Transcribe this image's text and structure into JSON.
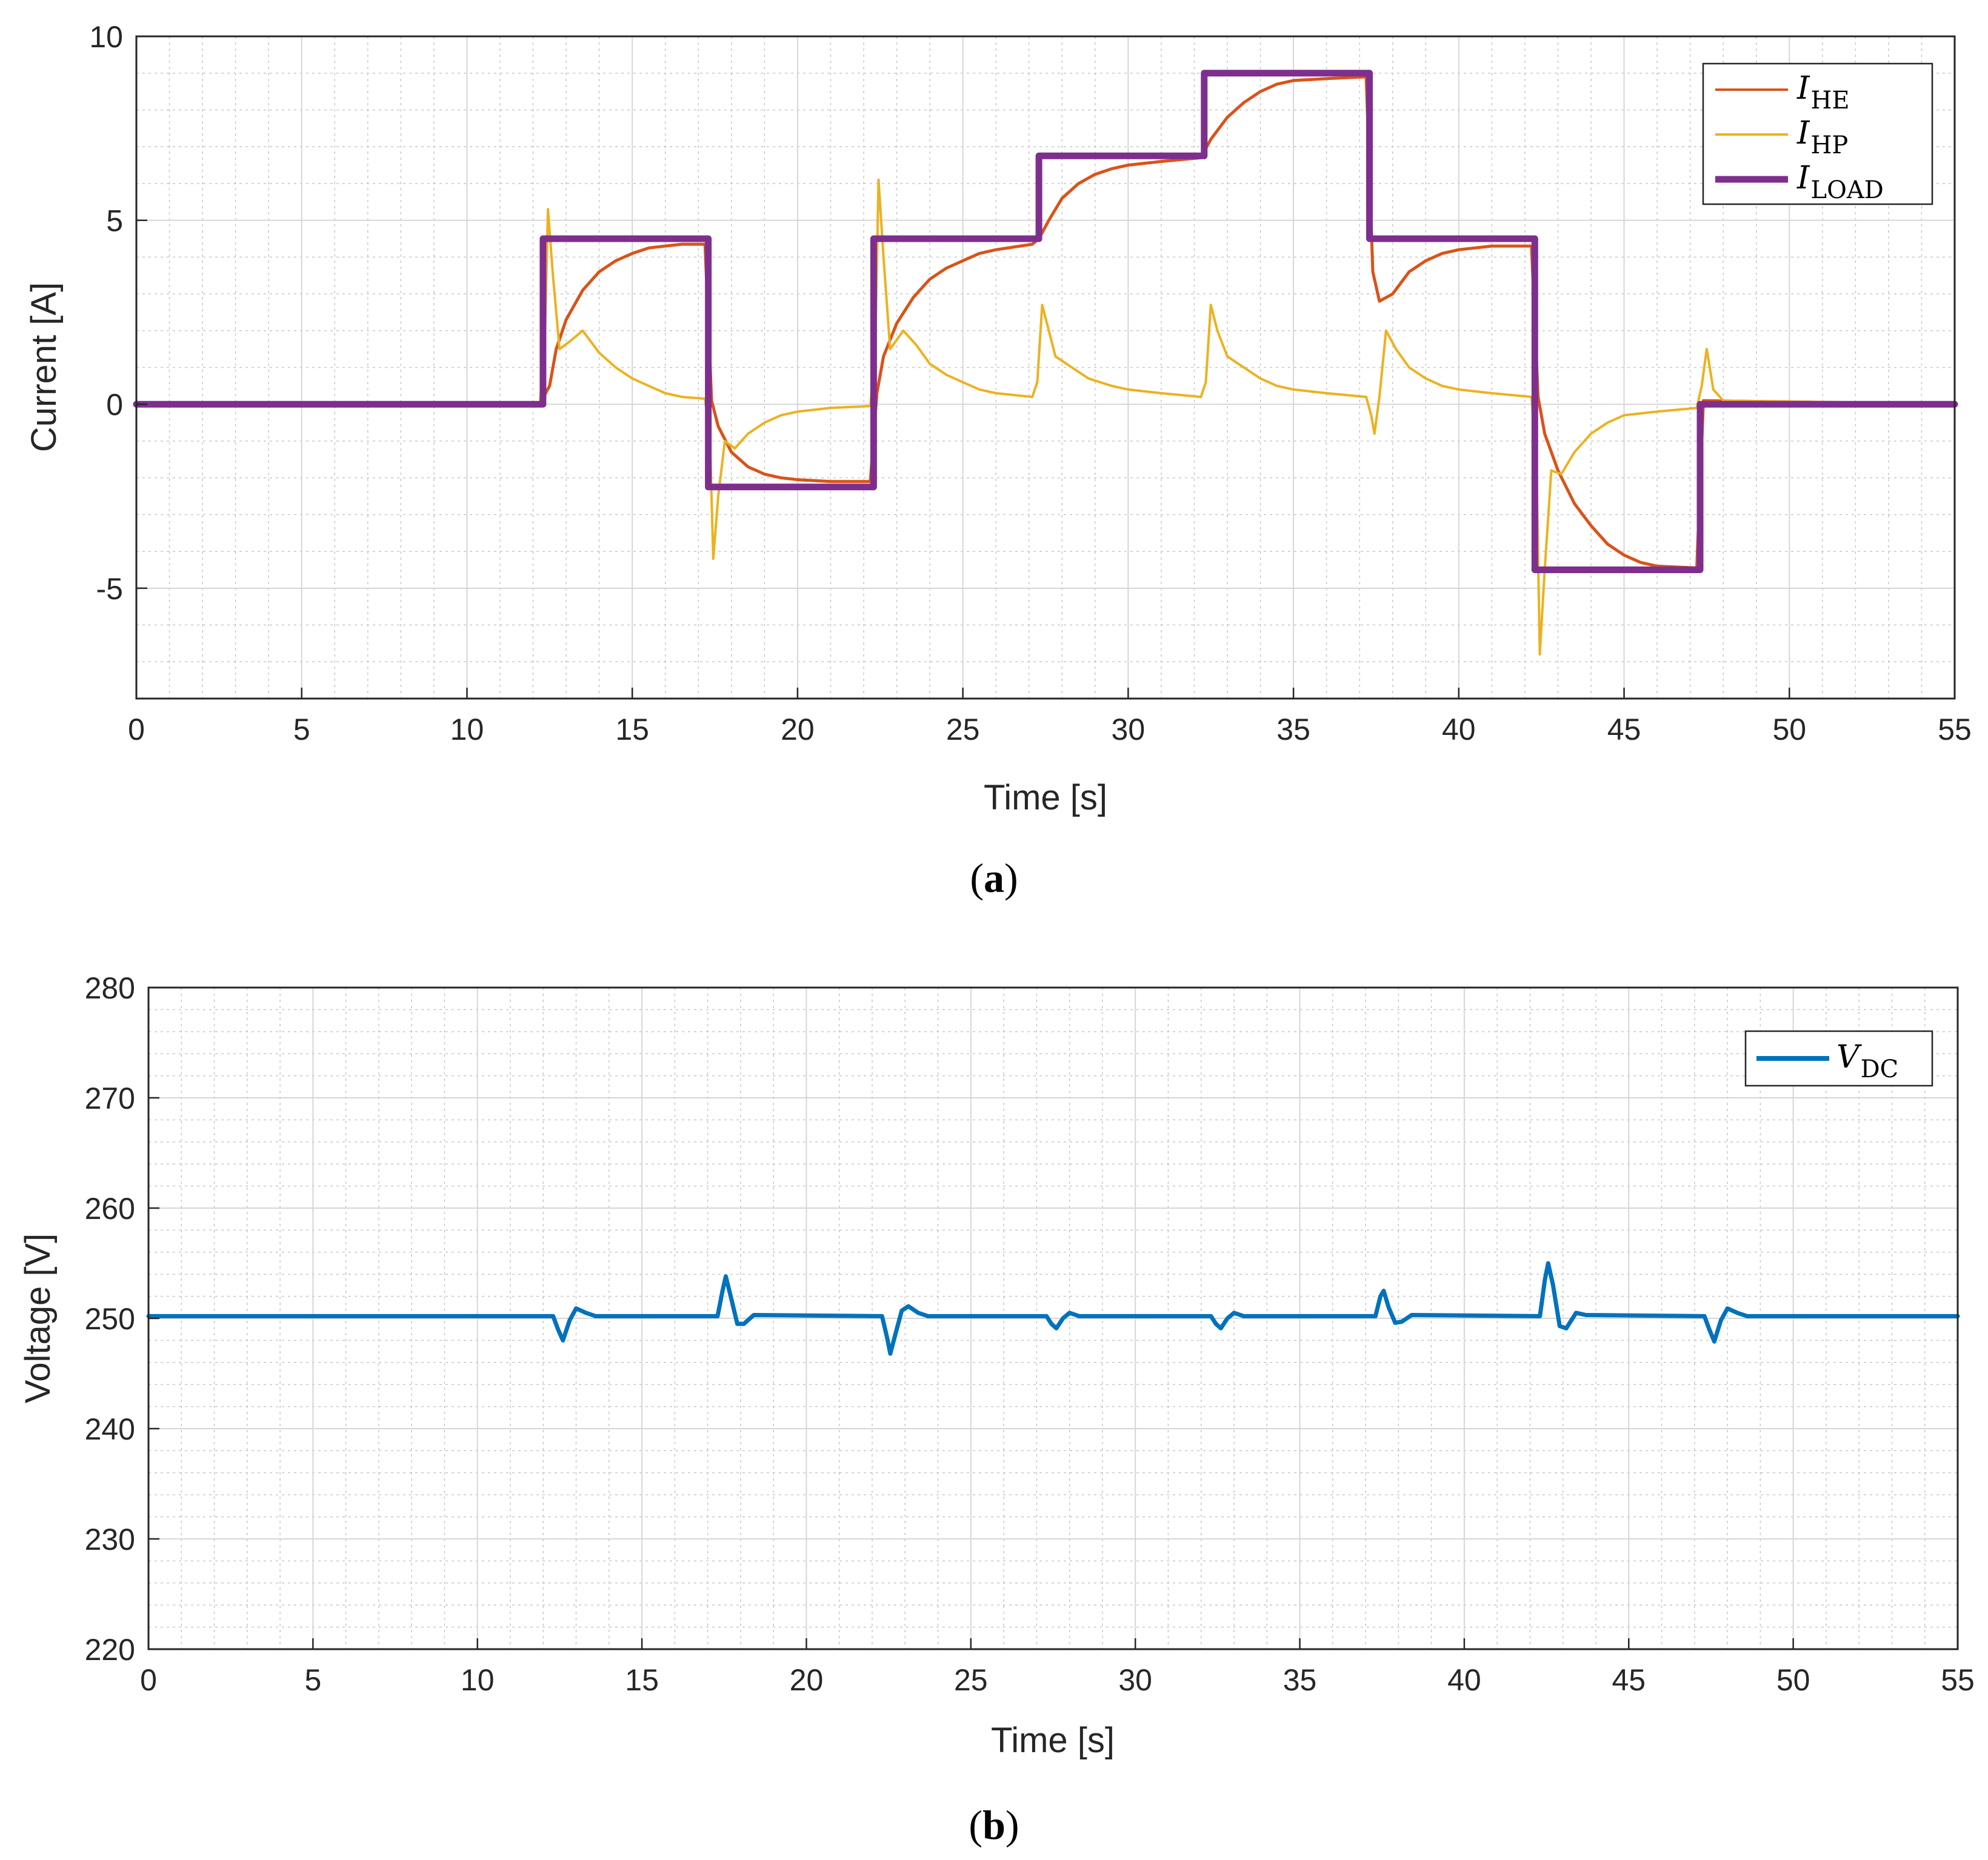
{
  "chart_data": [
    {
      "id": "a",
      "type": "line",
      "caption": "a",
      "xlabel": "Time [s]",
      "ylabel": "Current [A]",
      "xlim": [
        0,
        55
      ],
      "ylim": [
        -8,
        10
      ],
      "xticks": [
        0,
        5,
        10,
        15,
        20,
        25,
        30,
        35,
        40,
        45,
        50,
        55
      ],
      "yticks": [
        -5,
        0,
        5,
        10
      ],
      "grid": true,
      "minor_grid": true,
      "legend_position": "top-right",
      "series": [
        {
          "name": "I_HE",
          "label_main": "I",
          "label_sub": "HE",
          "color": "#D95319",
          "points": [
            [
              0,
              0
            ],
            [
              12.2,
              0
            ],
            [
              12.5,
              0.5
            ],
            [
              12.7,
              1.5
            ],
            [
              13.0,
              2.3
            ],
            [
              13.5,
              3.1
            ],
            [
              14,
              3.6
            ],
            [
              14.5,
              3.9
            ],
            [
              15,
              4.1
            ],
            [
              15.5,
              4.25
            ],
            [
              16,
              4.3
            ],
            [
              16.5,
              4.35
            ],
            [
              17.2,
              4.35
            ],
            [
              17.4,
              0.1
            ],
            [
              17.6,
              -0.6
            ],
            [
              18.0,
              -1.3
            ],
            [
              18.5,
              -1.7
            ],
            [
              19,
              -1.9
            ],
            [
              19.5,
              -2.0
            ],
            [
              20,
              -2.05
            ],
            [
              21,
              -2.1
            ],
            [
              22.2,
              -2.1
            ],
            [
              22.4,
              0.3
            ],
            [
              22.6,
              1.3
            ],
            [
              23,
              2.2
            ],
            [
              23.5,
              2.9
            ],
            [
              24,
              3.4
            ],
            [
              24.5,
              3.7
            ],
            [
              25,
              3.9
            ],
            [
              25.5,
              4.1
            ],
            [
              26,
              4.2
            ],
            [
              27.1,
              4.35
            ],
            [
              27.3,
              4.5
            ],
            [
              27.6,
              5.0
            ],
            [
              28,
              5.6
            ],
            [
              28.5,
              6.0
            ],
            [
              29,
              6.25
            ],
            [
              29.5,
              6.4
            ],
            [
              30,
              6.5
            ],
            [
              31,
              6.6
            ],
            [
              32.2,
              6.7
            ],
            [
              32.5,
              7.2
            ],
            [
              33,
              7.8
            ],
            [
              33.5,
              8.2
            ],
            [
              34,
              8.5
            ],
            [
              34.5,
              8.7
            ],
            [
              35,
              8.8
            ],
            [
              36,
              8.85
            ],
            [
              37.2,
              8.9
            ],
            [
              37.4,
              3.6
            ],
            [
              37.6,
              2.8
            ],
            [
              38,
              3.0
            ],
            [
              38.5,
              3.6
            ],
            [
              39,
              3.9
            ],
            [
              39.5,
              4.1
            ],
            [
              40,
              4.2
            ],
            [
              41,
              4.3
            ],
            [
              42.2,
              4.3
            ],
            [
              42.4,
              0.2
            ],
            [
              42.6,
              -0.8
            ],
            [
              43,
              -1.8
            ],
            [
              43.5,
              -2.7
            ],
            [
              44,
              -3.3
            ],
            [
              44.5,
              -3.8
            ],
            [
              45,
              -4.1
            ],
            [
              45.5,
              -4.3
            ],
            [
              46,
              -4.4
            ],
            [
              47.2,
              -4.45
            ],
            [
              47.4,
              0.1
            ],
            [
              55,
              0
            ]
          ]
        },
        {
          "name": "I_HP",
          "label_main": "I",
          "label_sub": "HP",
          "color": "#EDB120",
          "points": [
            [
              0,
              0
            ],
            [
              12.2,
              0
            ],
            [
              12.35,
              1.5
            ],
            [
              12.45,
              5.3
            ],
            [
              12.6,
              3.5
            ],
            [
              12.8,
              1.5
            ],
            [
              13.1,
              1.7
            ],
            [
              13.5,
              2.0
            ],
            [
              14,
              1.4
            ],
            [
              14.5,
              1.0
            ],
            [
              15,
              0.7
            ],
            [
              15.5,
              0.5
            ],
            [
              16,
              0.3
            ],
            [
              16.5,
              0.2
            ],
            [
              17.2,
              0.15
            ],
            [
              17.35,
              -1.0
            ],
            [
              17.45,
              -4.2
            ],
            [
              17.6,
              -2.5
            ],
            [
              17.8,
              -1.0
            ],
            [
              18.1,
              -1.2
            ],
            [
              18.5,
              -0.8
            ],
            [
              19,
              -0.5
            ],
            [
              19.5,
              -0.3
            ],
            [
              20,
              -0.2
            ],
            [
              21,
              -0.1
            ],
            [
              22.2,
              -0.05
            ],
            [
              22.35,
              1.5
            ],
            [
              22.45,
              6.1
            ],
            [
              22.6,
              4.0
            ],
            [
              22.8,
              1.5
            ],
            [
              23.2,
              2.0
            ],
            [
              23.6,
              1.6
            ],
            [
              24,
              1.1
            ],
            [
              24.5,
              0.8
            ],
            [
              25,
              0.6
            ],
            [
              25.5,
              0.4
            ],
            [
              26,
              0.3
            ],
            [
              27.1,
              0.2
            ],
            [
              27.25,
              0.6
            ],
            [
              27.4,
              2.7
            ],
            [
              27.6,
              2.0
            ],
            [
              27.8,
              1.3
            ],
            [
              28.3,
              1.0
            ],
            [
              28.8,
              0.7
            ],
            [
              29.5,
              0.5
            ],
            [
              30,
              0.4
            ],
            [
              31,
              0.3
            ],
            [
              32.2,
              0.2
            ],
            [
              32.35,
              0.6
            ],
            [
              32.5,
              2.7
            ],
            [
              32.7,
              2.0
            ],
            [
              33,
              1.3
            ],
            [
              33.5,
              1.0
            ],
            [
              34,
              0.7
            ],
            [
              34.5,
              0.5
            ],
            [
              35,
              0.4
            ],
            [
              36,
              0.3
            ],
            [
              37.2,
              0.2
            ],
            [
              37.35,
              -0.3
            ],
            [
              37.45,
              -0.8
            ],
            [
              37.6,
              0.2
            ],
            [
              37.8,
              2.0
            ],
            [
              38.1,
              1.5
            ],
            [
              38.5,
              1.0
            ],
            [
              39,
              0.7
            ],
            [
              39.5,
              0.5
            ],
            [
              40,
              0.4
            ],
            [
              41,
              0.3
            ],
            [
              42.2,
              0.2
            ],
            [
              42.35,
              -1.5
            ],
            [
              42.45,
              -6.8
            ],
            [
              42.6,
              -4.5
            ],
            [
              42.8,
              -1.8
            ],
            [
              43.1,
              -1.9
            ],
            [
              43.5,
              -1.3
            ],
            [
              44,
              -0.8
            ],
            [
              44.5,
              -0.5
            ],
            [
              45,
              -0.3
            ],
            [
              46,
              -0.2
            ],
            [
              47.2,
              -0.1
            ],
            [
              47.35,
              0.5
            ],
            [
              47.5,
              1.5
            ],
            [
              47.7,
              0.4
            ],
            [
              48,
              0.1
            ],
            [
              55,
              0
            ]
          ]
        },
        {
          "name": "I_LOAD",
          "label_main": "I",
          "label_sub": "LOAD",
          "color": "#7E2F8E",
          "points": [
            [
              0,
              0
            ],
            [
              12.3,
              0
            ],
            [
              12.3,
              4.5
            ],
            [
              17.3,
              4.5
            ],
            [
              17.3,
              -2.25
            ],
            [
              22.3,
              -2.25
            ],
            [
              22.3,
              4.5
            ],
            [
              27.3,
              4.5
            ],
            [
              27.3,
              6.75
            ],
            [
              32.3,
              6.75
            ],
            [
              32.3,
              9.0
            ],
            [
              37.3,
              9.0
            ],
            [
              37.3,
              4.5
            ],
            [
              42.3,
              4.5
            ],
            [
              42.3,
              -4.5
            ],
            [
              47.3,
              -4.5
            ],
            [
              47.3,
              0
            ],
            [
              55,
              0
            ]
          ]
        }
      ]
    },
    {
      "id": "b",
      "type": "line",
      "caption": "b",
      "xlabel": "Time [s]",
      "ylabel": "Voltage [V]",
      "xlim": [
        0,
        55
      ],
      "ylim": [
        220,
        280
      ],
      "xticks": [
        0,
        5,
        10,
        15,
        20,
        25,
        30,
        35,
        40,
        45,
        50,
        55
      ],
      "yticks": [
        220,
        230,
        240,
        250,
        260,
        270,
        280
      ],
      "grid": true,
      "minor_grid": true,
      "legend_position": "top-right",
      "series": [
        {
          "name": "V_DC",
          "label_main": "V",
          "label_sub": "DC",
          "color": "#0072BD",
          "points": [
            [
              0,
              250.2
            ],
            [
              12.3,
              250.2
            ],
            [
              12.45,
              249
            ],
            [
              12.6,
              248
            ],
            [
              12.8,
              249.8
            ],
            [
              13.0,
              250.9
            ],
            [
              13.3,
              250.5
            ],
            [
              13.6,
              250.2
            ],
            [
              17.3,
              250.2
            ],
            [
              17.45,
              252.5
            ],
            [
              17.55,
              253.8
            ],
            [
              17.7,
              252
            ],
            [
              17.9,
              249.5
            ],
            [
              18.1,
              249.5
            ],
            [
              18.4,
              250.3
            ],
            [
              22.3,
              250.2
            ],
            [
              22.45,
              248.3
            ],
            [
              22.55,
              246.8
            ],
            [
              22.7,
              248.5
            ],
            [
              22.9,
              250.7
            ],
            [
              23.1,
              251.1
            ],
            [
              23.4,
              250.5
            ],
            [
              23.7,
              250.2
            ],
            [
              27.3,
              250.2
            ],
            [
              27.45,
              249.5
            ],
            [
              27.6,
              249.1
            ],
            [
              27.8,
              250
            ],
            [
              28.0,
              250.5
            ],
            [
              28.3,
              250.2
            ],
            [
              32.3,
              250.2
            ],
            [
              32.45,
              249.5
            ],
            [
              32.6,
              249.1
            ],
            [
              32.8,
              250
            ],
            [
              33.0,
              250.5
            ],
            [
              33.3,
              250.2
            ],
            [
              37.3,
              250.2
            ],
            [
              37.45,
              252.0
            ],
            [
              37.55,
              252.5
            ],
            [
              37.7,
              251
            ],
            [
              37.9,
              249.6
            ],
            [
              38.1,
              249.7
            ],
            [
              38.4,
              250.3
            ],
            [
              42.3,
              250.2
            ],
            [
              42.45,
              253.5
            ],
            [
              42.55,
              255.0
            ],
            [
              42.7,
              253
            ],
            [
              42.9,
              249.3
            ],
            [
              43.1,
              249.1
            ],
            [
              43.4,
              250.5
            ],
            [
              43.7,
              250.3
            ],
            [
              47.3,
              250.2
            ],
            [
              47.45,
              249
            ],
            [
              47.6,
              247.9
            ],
            [
              47.8,
              249.8
            ],
            [
              48.0,
              250.9
            ],
            [
              48.3,
              250.5
            ],
            [
              48.6,
              250.2
            ],
            [
              55,
              250.2
            ]
          ]
        }
      ]
    }
  ]
}
